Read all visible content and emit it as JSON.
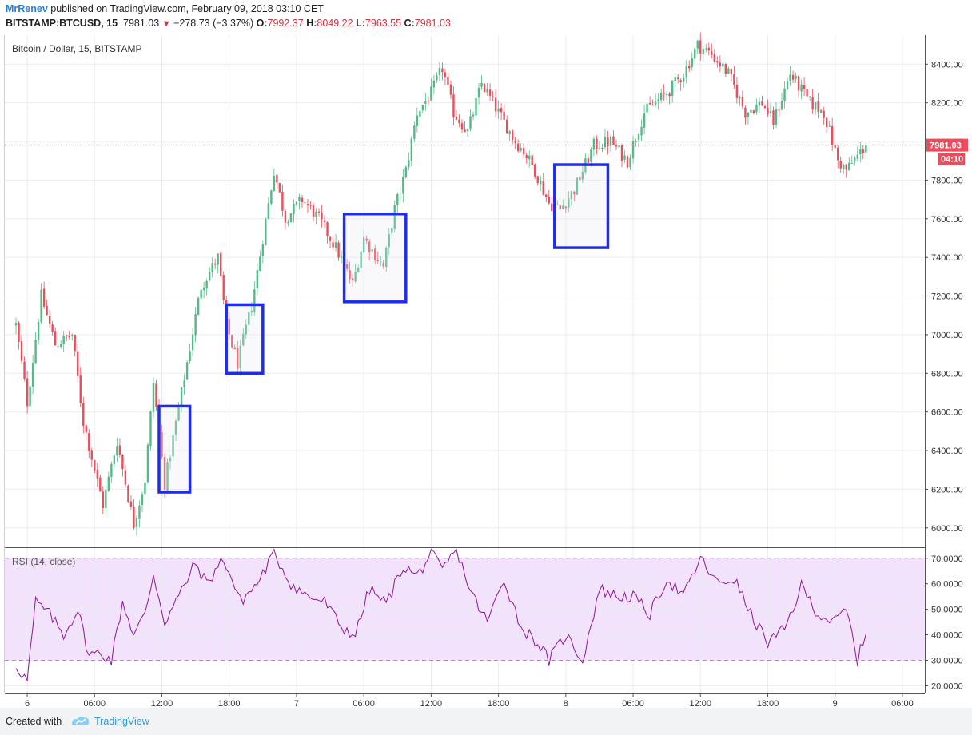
{
  "header": {
    "author": "MrRenev",
    "published": "published on TradingView.com, February 09, 2018 03:10 CET",
    "symbol": "BITSTAMP:BTCUSD, 15",
    "last": "7981.03",
    "change": "−278.73 (−3.37%)",
    "o_label": "O:",
    "o_value": "7992.37",
    "h_label": "H:",
    "h_value": "8049.22",
    "l_label": "L:",
    "l_value": "7963.55",
    "c_label": "C:",
    "c_value": "7981.03"
  },
  "colors": {
    "up": "#53b987",
    "down": "#eb4d5c",
    "box": "#1f2de8",
    "rsi_line": "#8e1599",
    "rsi_band": "#f3e2fb",
    "price_badge": "#eb4d5c",
    "grid": "#e9ecf2"
  },
  "chart_data": [
    {
      "type": "candlestick",
      "title": "Bitcoin / Dollar, 15, BITSTAMP",
      "interval": "15m",
      "ylim": [
        5900,
        8550
      ],
      "y_ticks": [
        "6000.00",
        "6200.00",
        "6400.00",
        "6600.00",
        "6800.00",
        "7000.00",
        "7200.00",
        "7400.00",
        "7600.00",
        "7800.00",
        "8000.00",
        "8200.00",
        "8400.00"
      ],
      "x_ticks": [
        "6",
        "06:00",
        "12:00",
        "18:00",
        "7",
        "06:00",
        "12:00",
        "18:00",
        "8",
        "06:00",
        "12:00",
        "18:00",
        "9",
        "06:00"
      ],
      "last_price_label": "7981.03",
      "countdown_label": "04:10",
      "path_points": [
        {
          "t": "2018-02-05 23:00",
          "price": 7050
        },
        {
          "t": "2018-02-06 00:00",
          "price": 6650
        },
        {
          "t": "2018-02-06 01:15",
          "price": 7200
        },
        {
          "t": "2018-02-06 02:30",
          "price": 6950
        },
        {
          "t": "2018-02-06 04:00",
          "price": 7000
        },
        {
          "t": "2018-02-06 05:00",
          "price": 6550
        },
        {
          "t": "2018-02-06 06:45",
          "price": 6120
        },
        {
          "t": "2018-02-06 08:00",
          "price": 6450
        },
        {
          "t": "2018-02-06 09:30",
          "price": 6020
        },
        {
          "t": "2018-02-06 10:30",
          "price": 6250
        },
        {
          "t": "2018-02-06 11:15",
          "price": 6750
        },
        {
          "t": "2018-02-06 12:15",
          "price": 6230
        },
        {
          "t": "2018-02-06 13:30",
          "price": 6620
        },
        {
          "t": "2018-02-06 15:30",
          "price": 7250
        },
        {
          "t": "2018-02-06 17:00",
          "price": 7400
        },
        {
          "t": "2018-02-06 17:45",
          "price": 7050
        },
        {
          "t": "2018-02-06 18:45",
          "price": 6850
        },
        {
          "t": "2018-02-06 20:00",
          "price": 7150
        },
        {
          "t": "2018-02-06 21:00",
          "price": 7500
        },
        {
          "t": "2018-02-06 22:00",
          "price": 7850
        },
        {
          "t": "2018-02-06 23:00",
          "price": 7600
        },
        {
          "t": "2018-02-07 00:30",
          "price": 7700
        },
        {
          "t": "2018-02-07 02:00",
          "price": 7600
        },
        {
          "t": "2018-02-07 03:30",
          "price": 7450
        },
        {
          "t": "2018-02-07 05:00",
          "price": 7260
        },
        {
          "t": "2018-02-07 06:00",
          "price": 7500
        },
        {
          "t": "2018-02-07 07:45",
          "price": 7350
        },
        {
          "t": "2018-02-07 08:45",
          "price": 7650
        },
        {
          "t": "2018-02-07 09:45",
          "price": 7850
        },
        {
          "t": "2018-02-07 10:45",
          "price": 8150
        },
        {
          "t": "2018-02-07 12:00",
          "price": 8250
        },
        {
          "t": "2018-02-07 13:00",
          "price": 8380
        },
        {
          "t": "2018-02-07 14:00",
          "price": 8150
        },
        {
          "t": "2018-02-07 15:15",
          "price": 8050
        },
        {
          "t": "2018-02-07 16:30",
          "price": 8300
        },
        {
          "t": "2018-02-07 18:00",
          "price": 8150
        },
        {
          "t": "2018-02-07 19:30",
          "price": 8000
        },
        {
          "t": "2018-02-07 20:15",
          "price": 7950
        },
        {
          "t": "2018-02-07 21:15",
          "price": 7850
        },
        {
          "t": "2018-02-07 22:30",
          "price": 7680
        },
        {
          "t": "2018-02-07 23:30",
          "price": 7650
        },
        {
          "t": "2018-02-08 00:45",
          "price": 7750
        },
        {
          "t": "2018-02-08 02:30",
          "price": 7980
        },
        {
          "t": "2018-02-08 04:00",
          "price": 8000
        },
        {
          "t": "2018-02-08 05:30",
          "price": 7900
        },
        {
          "t": "2018-02-08 07:00",
          "price": 8150
        },
        {
          "t": "2018-02-08 09:00",
          "price": 8250
        },
        {
          "t": "2018-02-08 10:30",
          "price": 8350
        },
        {
          "t": "2018-02-08 11:45",
          "price": 8500
        },
        {
          "t": "2018-02-08 13:00",
          "price": 8450
        },
        {
          "t": "2018-02-08 14:30",
          "price": 8350
        },
        {
          "t": "2018-02-08 16:00",
          "price": 8150
        },
        {
          "t": "2018-02-08 17:30",
          "price": 8200
        },
        {
          "t": "2018-02-08 18:30",
          "price": 8100
        },
        {
          "t": "2018-02-08 20:00",
          "price": 8350
        },
        {
          "t": "2018-02-08 21:45",
          "price": 8200
        },
        {
          "t": "2018-02-08 23:00",
          "price": 8150
        },
        {
          "t": "2018-02-09 00:15",
          "price": 7900
        },
        {
          "t": "2018-02-09 01:00",
          "price": 7850
        },
        {
          "t": "2018-02-09 02:45",
          "price": 7981
        }
      ],
      "boxes": [
        {
          "from": "2018-02-06 11:45",
          "to": "2018-02-06 14:30",
          "low": 6185,
          "high": 6630
        },
        {
          "from": "2018-02-06 17:45",
          "to": "2018-02-06 21:00",
          "low": 6800,
          "high": 7155
        },
        {
          "from": "2018-02-07 04:15",
          "to": "2018-02-07 09:45",
          "low": 7170,
          "high": 7625
        },
        {
          "from": "2018-02-07 23:00",
          "to": "2018-02-08 03:45",
          "low": 7450,
          "high": 7880
        }
      ]
    },
    {
      "type": "line",
      "title": "RSI (14, close)",
      "series_name": "RSI",
      "ylim": [
        17,
        74
      ],
      "y_ticks": [
        "20.0000",
        "30.0000",
        "40.0000",
        "50.0000",
        "60.0000",
        "70.0000"
      ],
      "bands": [
        30,
        70
      ],
      "path_points": [
        {
          "t": "2018-02-05 23:00",
          "rsi": 28
        },
        {
          "t": "2018-02-06 00:00",
          "rsi": 22
        },
        {
          "t": "2018-02-06 00:45",
          "rsi": 53
        },
        {
          "t": "2018-02-06 02:00",
          "rsi": 48
        },
        {
          "t": "2018-02-06 03:15",
          "rsi": 40
        },
        {
          "t": "2018-02-06 04:30",
          "rsi": 50
        },
        {
          "t": "2018-02-06 05:30",
          "rsi": 32
        },
        {
          "t": "2018-02-06 06:30",
          "rsi": 33
        },
        {
          "t": "2018-02-06 07:30",
          "rsi": 30
        },
        {
          "t": "2018-02-06 08:30",
          "rsi": 53
        },
        {
          "t": "2018-02-06 09:30",
          "rsi": 40
        },
        {
          "t": "2018-02-06 10:30",
          "rsi": 48
        },
        {
          "t": "2018-02-06 11:15",
          "rsi": 64
        },
        {
          "t": "2018-02-06 12:15",
          "rsi": 45
        },
        {
          "t": "2018-02-06 13:30",
          "rsi": 55
        },
        {
          "t": "2018-02-06 15:00",
          "rsi": 68
        },
        {
          "t": "2018-02-06 16:00",
          "rsi": 60
        },
        {
          "t": "2018-02-06 17:30",
          "rsi": 70
        },
        {
          "t": "2018-02-06 19:00",
          "rsi": 53
        },
        {
          "t": "2018-02-06 20:30",
          "rsi": 60
        },
        {
          "t": "2018-02-06 22:00",
          "rsi": 72
        },
        {
          "t": "2018-02-06 23:30",
          "rsi": 60
        },
        {
          "t": "2018-02-07 01:00",
          "rsi": 55
        },
        {
          "t": "2018-02-07 02:30",
          "rsi": 53
        },
        {
          "t": "2018-02-07 04:00",
          "rsi": 43
        },
        {
          "t": "2018-02-07 05:15",
          "rsi": 40
        },
        {
          "t": "2018-02-07 06:30",
          "rsi": 58
        },
        {
          "t": "2018-02-07 08:00",
          "rsi": 52
        },
        {
          "t": "2018-02-07 09:30",
          "rsi": 67
        },
        {
          "t": "2018-02-07 10:45",
          "rsi": 63
        },
        {
          "t": "2018-02-07 12:00",
          "rsi": 72
        },
        {
          "t": "2018-02-07 13:00",
          "rsi": 65
        },
        {
          "t": "2018-02-07 14:15",
          "rsi": 74
        },
        {
          "t": "2018-02-07 15:30",
          "rsi": 57
        },
        {
          "t": "2018-02-07 17:00",
          "rsi": 45
        },
        {
          "t": "2018-02-07 18:30",
          "rsi": 62
        },
        {
          "t": "2018-02-07 20:00",
          "rsi": 43
        },
        {
          "t": "2018-02-07 21:30",
          "rsi": 37
        },
        {
          "t": "2018-02-07 22:30",
          "rsi": 30
        },
        {
          "t": "2018-02-08 00:00",
          "rsi": 40
        },
        {
          "t": "2018-02-08 01:30",
          "rsi": 30
        },
        {
          "t": "2018-02-08 03:00",
          "rsi": 58
        },
        {
          "t": "2018-02-08 04:30",
          "rsi": 55
        },
        {
          "t": "2018-02-08 06:00",
          "rsi": 55
        },
        {
          "t": "2018-02-08 07:30",
          "rsi": 48
        },
        {
          "t": "2018-02-08 09:00",
          "rsi": 62
        },
        {
          "t": "2018-02-08 10:30",
          "rsi": 55
        },
        {
          "t": "2018-02-08 12:00",
          "rsi": 70
        },
        {
          "t": "2018-02-08 13:30",
          "rsi": 60
        },
        {
          "t": "2018-02-08 15:00",
          "rsi": 62
        },
        {
          "t": "2018-02-08 16:30",
          "rsi": 48
        },
        {
          "t": "2018-02-08 18:00",
          "rsi": 37
        },
        {
          "t": "2018-02-08 19:30",
          "rsi": 42
        },
        {
          "t": "2018-02-08 21:00",
          "rsi": 59
        },
        {
          "t": "2018-02-08 22:30",
          "rsi": 48
        },
        {
          "t": "2018-02-09 00:00",
          "rsi": 45
        },
        {
          "t": "2018-02-09 01:00",
          "rsi": 50
        },
        {
          "t": "2018-02-09 02:00",
          "rsi": 30
        },
        {
          "t": "2018-02-09 02:45",
          "rsi": 41
        }
      ]
    }
  ],
  "footer": {
    "created": "Created with",
    "brand": "TradingView"
  }
}
